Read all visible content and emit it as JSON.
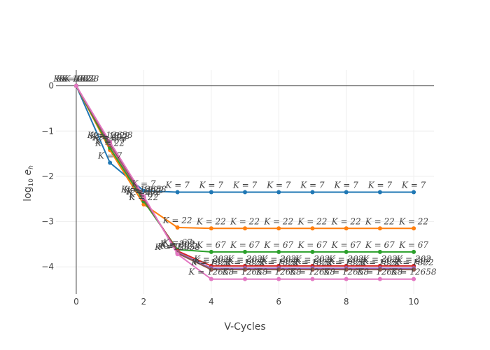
{
  "chart_data": {
    "type": "line",
    "title": "",
    "xlabel": "V-Cycles",
    "ylabel": "log10 e_h",
    "xlim": [
      -0.6,
      10.6
    ],
    "ylim": [
      -4.6,
      0.35
    ],
    "x_ticks": [
      "0",
      "2",
      "4",
      "6",
      "8",
      "10"
    ],
    "y_ticks": [
      "0",
      "−1",
      "−2",
      "−3",
      "−4"
    ],
    "grid": true,
    "legend": "none",
    "x": [
      0,
      1,
      2,
      3,
      4,
      5,
      6,
      7,
      8,
      9,
      10
    ],
    "series": [
      {
        "label": "K = 7",
        "color": "#1f77b4",
        "values": [
          0,
          -1.7,
          -2.32,
          -2.35,
          -2.35,
          -2.35,
          -2.35,
          -2.35,
          -2.35,
          -2.35,
          -2.35
        ]
      },
      {
        "label": "K = 22",
        "color": "#ff7f0e",
        "values": [
          0,
          -1.42,
          -2.62,
          -3.13,
          -3.15,
          -3.15,
          -3.15,
          -3.15,
          -3.15,
          -3.15,
          -3.15
        ]
      },
      {
        "label": "K = 67",
        "color": "#2ca02c",
        "values": [
          0,
          -1.37,
          -2.55,
          -3.62,
          -3.67,
          -3.67,
          -3.67,
          -3.67,
          -3.67,
          -3.67,
          -3.67
        ]
      },
      {
        "label": "K = 202",
        "color": "#d62728",
        "values": [
          0,
          -1.3,
          -2.5,
          -3.65,
          -3.98,
          -3.98,
          -3.98,
          -3.98,
          -3.98,
          -3.98,
          -3.98
        ]
      },
      {
        "label": "K = 607",
        "color": "#9467bd",
        "values": [
          0,
          -1.28,
          -2.48,
          -3.68,
          -4.03,
          -4.03,
          -4.03,
          -4.03,
          -4.03,
          -4.03,
          -4.03
        ]
      },
      {
        "label": "K = 1822",
        "color": "#8c564b",
        "values": [
          0,
          -1.26,
          -2.46,
          -3.7,
          -4.06,
          -4.06,
          -4.06,
          -4.06,
          -4.06,
          -4.06,
          -4.06
        ]
      },
      {
        "label": "K = 12658",
        "color": "#e377c2",
        "values": [
          0,
          -1.24,
          -2.44,
          -3.72,
          -4.27,
          -4.27,
          -4.27,
          -4.27,
          -4.27,
          -4.27,
          -4.27
        ]
      }
    ]
  }
}
